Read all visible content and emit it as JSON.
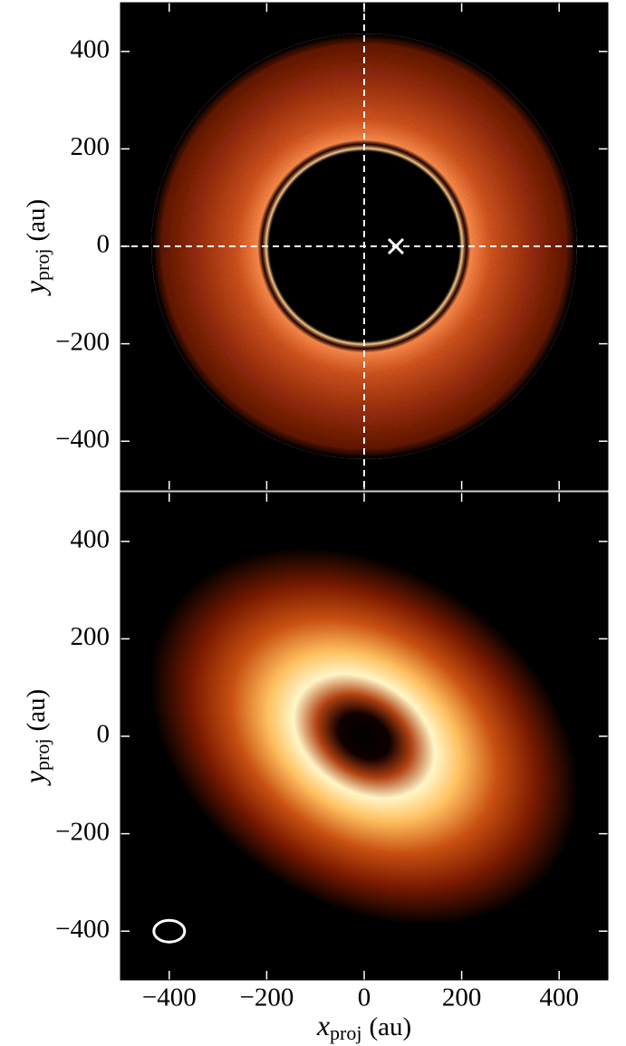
{
  "chart_data": [
    {
      "type": "image",
      "ylabel": {
        "symbol": "y",
        "subscript": "proj",
        "unit": "(au)"
      },
      "xlim": [
        -500,
        500
      ],
      "ylim": [
        -500,
        500
      ],
      "xticks": [
        -400,
        -200,
        0,
        200,
        400
      ],
      "show_xtick_labels": false,
      "yticks": [
        {
          "value": -400,
          "label": "−400"
        },
        {
          "value": -200,
          "label": "−200"
        },
        0,
        200,
        400
      ],
      "crosshair": {
        "x": 0,
        "y": 0
      },
      "marker": {
        "x": 65,
        "y": 0
      }
    },
    {
      "type": "image",
      "xlabel": {
        "symbol": "x",
        "subscript": "proj",
        "unit": "(au)"
      },
      "ylabel": {
        "symbol": "y",
        "subscript": "proj",
        "unit": "(au)"
      },
      "xlim": [
        -500,
        500
      ],
      "ylim": [
        -500,
        500
      ],
      "xticks": [
        {
          "value": -400,
          "label": "−400"
        },
        {
          "value": -200,
          "label": "−200"
        },
        0,
        200,
        400
      ],
      "show_xtick_labels": true,
      "yticks": [
        {
          "value": -400,
          "label": "−400"
        },
        {
          "value": -200,
          "label": "−200"
        },
        0,
        200,
        400
      ],
      "beam": {
        "x": -400,
        "y": -400
      }
    }
  ]
}
